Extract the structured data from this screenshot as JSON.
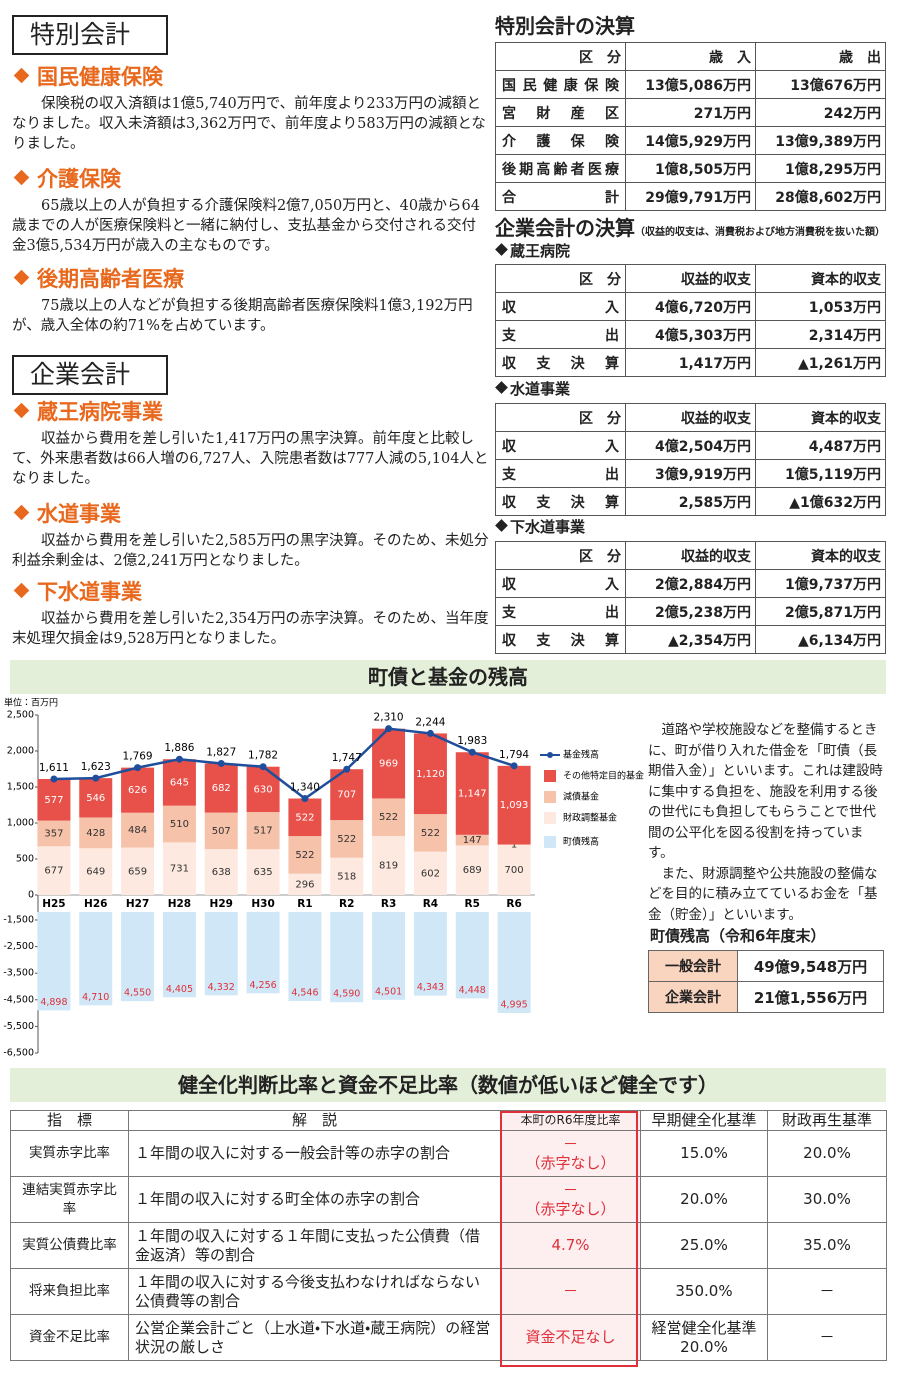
{
  "left": {
    "special_title": "特別会計",
    "enterprise_title": "企業会計",
    "sections": [
      {
        "heading": "国民健康保険",
        "body": "保険税の収入済額は1億5,740万円で、前年度より233万円の減額となりました。収入未済額は3,362万円で、前年度より583万円の減額となりました。"
      },
      {
        "heading": "介護保険",
        "body": "65歳以上の人が負担する介護保険料2億7,050万円と、40歳から64歳までの人が医療保険料と一緒に納付し、支払基金から交付される交付金3億5,534万円が歳入の主なものです。"
      },
      {
        "heading": "後期高齢者医療",
        "body": "75歳以上の人などが負担する後期高齢者医療保険料1億3,192万円が、歳入全体の約71%を占めています。"
      },
      {
        "heading": "蔵王病院事業",
        "body": "収益から費用を差し引いた1,417万円の黒字決算。前年度と比較して、外来患者数は66人増の6,727人、入院患者数は777人減の5,104人となりました。"
      },
      {
        "heading": "水道事業",
        "body": "収益から費用を差し引いた2,585万円の黒字決算。そのため、未処分利益余剰金は、2億2,241万円となりました。"
      },
      {
        "heading": "下水道事業",
        "body": "収益から費用を差し引いた2,354万円の赤字決算。そのため、当年度末処理欠損金は9,528万円となりました。"
      }
    ]
  },
  "special_table": {
    "title": "特別会計の決算",
    "header": [
      "区　分",
      "歳　入",
      "歳　出"
    ],
    "rows": [
      [
        "国民健康保険",
        "13億5,086万円",
        "13億676万円"
      ],
      [
        "宮財産区",
        "271万円",
        "242万円"
      ],
      [
        "介護保険",
        "14億5,929万円",
        "13億9,389万円"
      ],
      [
        "後期高齢者医療",
        "1億8,505万円",
        "1億8,295万円"
      ],
      [
        "合計",
        "29億9,791万円",
        "28億8,602万円"
      ]
    ]
  },
  "enterprise": {
    "title": "企業会計の決算",
    "note": "（収益的収支は、消費税および地方消費税を抜いた額）",
    "tables": [
      {
        "name": "蔵王病院",
        "header": [
          "区　分",
          "収益的収支",
          "資本的収支"
        ],
        "rows": [
          [
            "収入",
            "4億6,720万円",
            "1,053万円"
          ],
          [
            "支出",
            "4億5,303万円",
            "2,314万円"
          ],
          [
            "収支決算",
            "1,417万円",
            "▲1,261万円"
          ]
        ]
      },
      {
        "name": "水道事業",
        "header": [
          "区　分",
          "収益的収支",
          "資本的収支"
        ],
        "rows": [
          [
            "収入",
            "4億2,504万円",
            "4,487万円"
          ],
          [
            "支出",
            "3億9,919万円",
            "1億5,119万円"
          ],
          [
            "収支決算",
            "2,585万円",
            "▲1億632万円"
          ]
        ]
      },
      {
        "name": "下水道事業",
        "header": [
          "区　分",
          "収益的収支",
          "資本的収支"
        ],
        "rows": [
          [
            "収入",
            "2億2,884万円",
            "1億9,737万円"
          ],
          [
            "支出",
            "2億5,238万円",
            "2億5,871万円"
          ],
          [
            "収支決算",
            "▲2,354万円",
            "▲6,134万円"
          ]
        ]
      }
    ]
  },
  "chart_data": {
    "type": "bar",
    "title": "町債と基金の残高",
    "unit": "単位：百万円",
    "categories": [
      "H25",
      "H26",
      "H27",
      "H28",
      "H29",
      "H30",
      "R1",
      "R2",
      "R3",
      "R4",
      "R5",
      "R6"
    ],
    "series": [
      {
        "name": "基金残高",
        "type": "line",
        "color": "#1f4e9c",
        "values": [
          1611,
          1623,
          1769,
          1886,
          1827,
          1782,
          1340,
          1747,
          2310,
          2244,
          1983,
          1794
        ],
        "value_labels": [
          "1,611",
          "1,623",
          "1,769",
          "1,886",
          "1,827",
          "1,782",
          "1,340",
          "1,747",
          "2,310",
          "2,244",
          "1,983",
          "1,794"
        ]
      },
      {
        "name": "その他特定目的基金",
        "type": "bar",
        "color": "#e8504a",
        "values": [
          577,
          546,
          626,
          645,
          682,
          630,
          522,
          707,
          969,
          1120,
          1147,
          1093
        ],
        "value_labels": [
          "577",
          "546",
          "626",
          "645",
          "682",
          "630",
          "522",
          "707",
          "969",
          "1,120",
          "1,147",
          "1,093"
        ]
      },
      {
        "name": "減債基金",
        "type": "bar",
        "color": "#f6c2aa",
        "values": [
          357,
          428,
          484,
          510,
          507,
          517,
          522,
          522,
          522,
          522,
          147,
          1
        ]
      },
      {
        "name": "財政調整基金",
        "type": "bar",
        "color": "#fde9df",
        "values": [
          677,
          649,
          659,
          731,
          638,
          635,
          296,
          518,
          819,
          602,
          689,
          700
        ]
      },
      {
        "name": "町債残高",
        "type": "bar",
        "axis": "y2",
        "color": "#cfe7f6",
        "values": [
          -4898,
          -4710,
          -4550,
          -4405,
          -4332,
          -4256,
          -4546,
          -4590,
          -4501,
          -4343,
          -4448,
          -4995
        ],
        "value_labels": [
          "4,898",
          "4,710",
          "4,550",
          "4,405",
          "4,332",
          "4,256",
          "4,546",
          "4,590",
          "4,501",
          "4,343",
          "4,448",
          "4,995"
        ]
      }
    ],
    "ylim": [
      0,
      2500
    ],
    "yticks": [
      {
        "value": 2500,
        "label": "2,500"
      },
      {
        "value": 2000,
        "label": "2,000"
      },
      {
        "value": 1500,
        "label": "1,500"
      },
      {
        "value": 1000,
        "label": "1,000"
      },
      500,
      0
    ],
    "y2lim": [
      -6500,
      -1200
    ],
    "y2ticks": [
      {
        "value": -1500,
        "label": "-1,500"
      },
      {
        "value": -2500,
        "label": "-2,500"
      },
      {
        "value": -3500,
        "label": "-3,500"
      },
      {
        "value": -4500,
        "label": "-4,500"
      },
      {
        "value": -5500,
        "label": "-5,500"
      },
      {
        "value": -6500,
        "label": "-6,500"
      }
    ],
    "grid": false,
    "legend": "right"
  },
  "debt": {
    "paragraphs": [
      "道路や学校施設などを整備するときに、町が借り入れた借金を「町債（長期借入金）」といいます。これは建設時に集中する負担を、施設を利用する後の世代にも負担してもらうことで世代間の公平化を図る役割を持っています。",
      "また、財源調整や公共施設の整備などを目的に積み立てているお金を「基金（貯金）」といいます。"
    ],
    "table_title": "町債残高（令和6年度末）",
    "rows": [
      [
        "一般会計",
        "49億9,548万円"
      ],
      [
        "企業会計",
        "21億1,556万円"
      ]
    ]
  },
  "ratio": {
    "title": "健全化判断比率と資金不足比率（数値が低いほど健全です）",
    "header": [
      "指　標",
      "解　説",
      "本町のR6年度比率",
      "早期健全化基準",
      "財政再生基準"
    ],
    "rows": [
      [
        "実質赤字比率",
        "１年間の収入に対する一般会計等の赤字の割合",
        "－\n（赤字なし）",
        "15.0%",
        "20.0%"
      ],
      [
        "連結実質赤字比率",
        "１年間の収入に対する町全体の赤字の割合",
        "－\n（赤字なし）",
        "20.0%",
        "30.0%"
      ],
      [
        "実質公債費比率",
        "１年間の収入に対する１年間に支払った公債費（借金返済）等の割合",
        "4.7%",
        "25.0%",
        "35.0%"
      ],
      [
        "将来負担比率",
        "１年間の収入に対する今後支払わなければならない公債費等の割合",
        "－",
        "350.0%",
        "－"
      ],
      [
        "資金不足比率",
        "公営企業会計ごと（上水道・下水道・蔵王病院）の経営状況の厳しさ",
        "資金不足なし",
        "経営健全化基準\n20.0%",
        "－"
      ]
    ]
  }
}
